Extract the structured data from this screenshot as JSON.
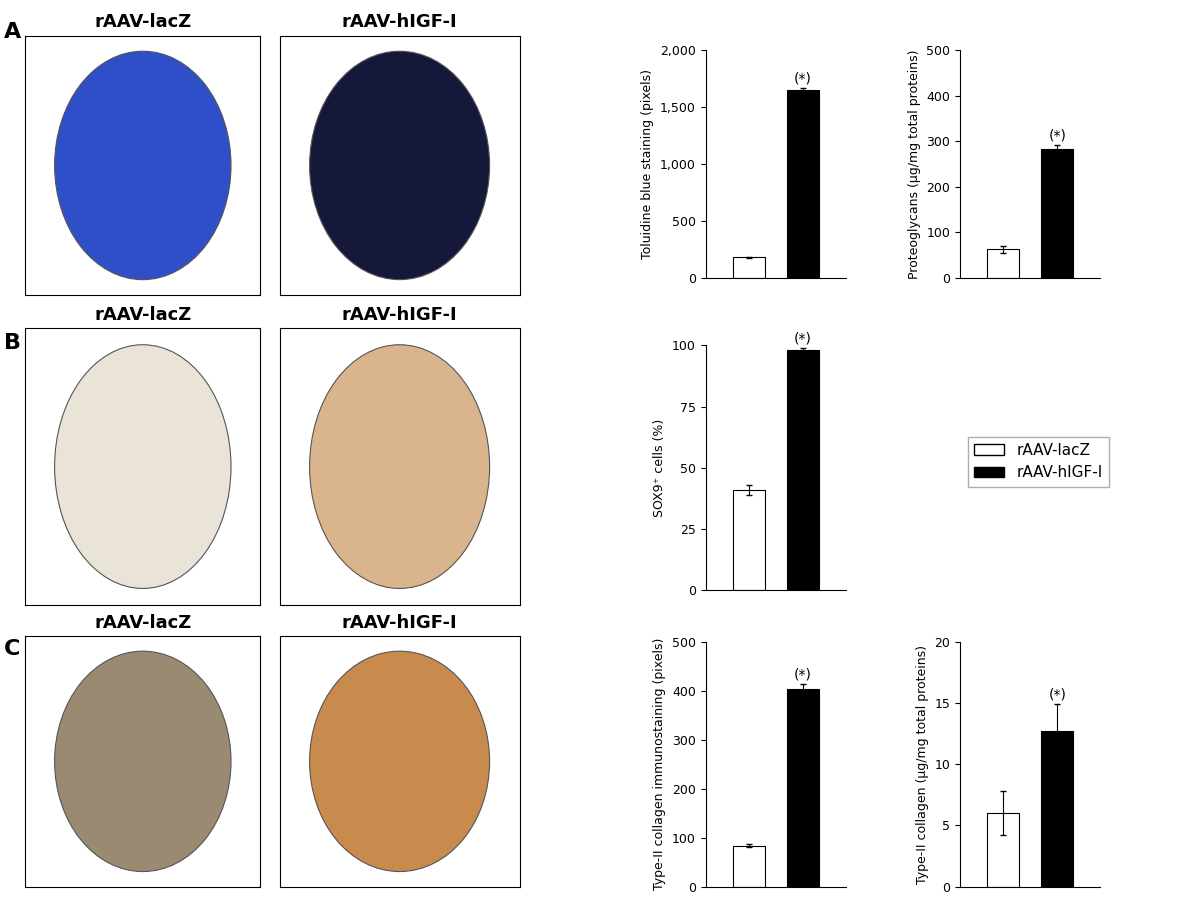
{
  "panels": [
    {
      "label": "A",
      "images": [
        "rAAV-lacZ",
        "rAAV-hIGF-I"
      ]
    },
    {
      "label": "B",
      "images": [
        "rAAV-lacZ",
        "rAAV-hIGF-I"
      ]
    },
    {
      "label": "C",
      "images": [
        "rAAV-lacZ",
        "rAAV-hIGF-I"
      ]
    }
  ],
  "legend": {
    "entries": [
      {
        "name": "rAAV-lacZ",
        "color": "#ffffff"
      },
      {
        "name": "rAAV-hIGF-I",
        "color": "#000000"
      }
    ]
  },
  "chart_data": [
    {
      "type": "bar",
      "categories": [
        null,
        null
      ],
      "values": [
        180,
        1650
      ],
      "errors": [
        5,
        15
      ],
      "colors": [
        "#ffffff",
        "#000000"
      ],
      "annotations": [
        null,
        "(*)"
      ],
      "ylabel": "Toluidine blue staining (pixels)",
      "ylim": [
        0,
        2000
      ],
      "yticks": [
        0,
        500,
        {
          "value": 1000,
          "label": "1,000"
        },
        {
          "value": 1500,
          "label": "1,500"
        },
        {
          "value": 2000,
          "label": "2,000"
        }
      ],
      "tick_labels": "y"
    },
    {
      "type": "bar",
      "categories": [
        null,
        null
      ],
      "values": [
        63,
        282
      ],
      "errors": [
        8,
        10
      ],
      "colors": [
        "#ffffff",
        "#000000"
      ],
      "annotations": [
        null,
        "(*)"
      ],
      "ylabel": "Proteoglycans (µg/mg total proteins)",
      "ylim": [
        0,
        500
      ],
      "yticks": [
        0,
        100,
        200,
        300,
        400,
        500
      ],
      "tick_labels": "y"
    },
    {
      "type": "bar",
      "categories": [
        null,
        null
      ],
      "values": [
        41,
        98
      ],
      "errors": [
        2,
        1
      ],
      "colors": [
        "#ffffff",
        "#000000"
      ],
      "annotations": [
        null,
        "(*)"
      ],
      "ylabel": "SOX9⁺ cells (%)",
      "ylim": [
        0,
        100
      ],
      "yticks": [
        0,
        25,
        50,
        75,
        100
      ],
      "tick_labels": "y"
    },
    {
      "type": "bar",
      "categories": [
        null,
        null
      ],
      "values": [
        83,
        403
      ],
      "errors": [
        3,
        10
      ],
      "colors": [
        "#ffffff",
        "#000000"
      ],
      "annotations": [
        null,
        "(*)"
      ],
      "ylabel": "Type-II collagen immunostaining (pixels)",
      "ylim": [
        0,
        500
      ],
      "yticks": [
        0,
        100,
        200,
        300,
        400,
        500
      ],
      "tick_labels": "y"
    },
    {
      "type": "bar",
      "categories": [
        null,
        null
      ],
      "values": [
        6,
        12.7
      ],
      "errors": [
        1.8,
        2.2
      ],
      "colors": [
        "#ffffff",
        "#000000"
      ],
      "annotations": [
        null,
        "(*)"
      ],
      "ylabel": "Type-II collagen (µg/mg total proteins)",
      "ylim": [
        0,
        20
      ],
      "yticks": [
        0,
        5,
        10,
        15,
        20
      ],
      "tick_labels": "y"
    }
  ]
}
